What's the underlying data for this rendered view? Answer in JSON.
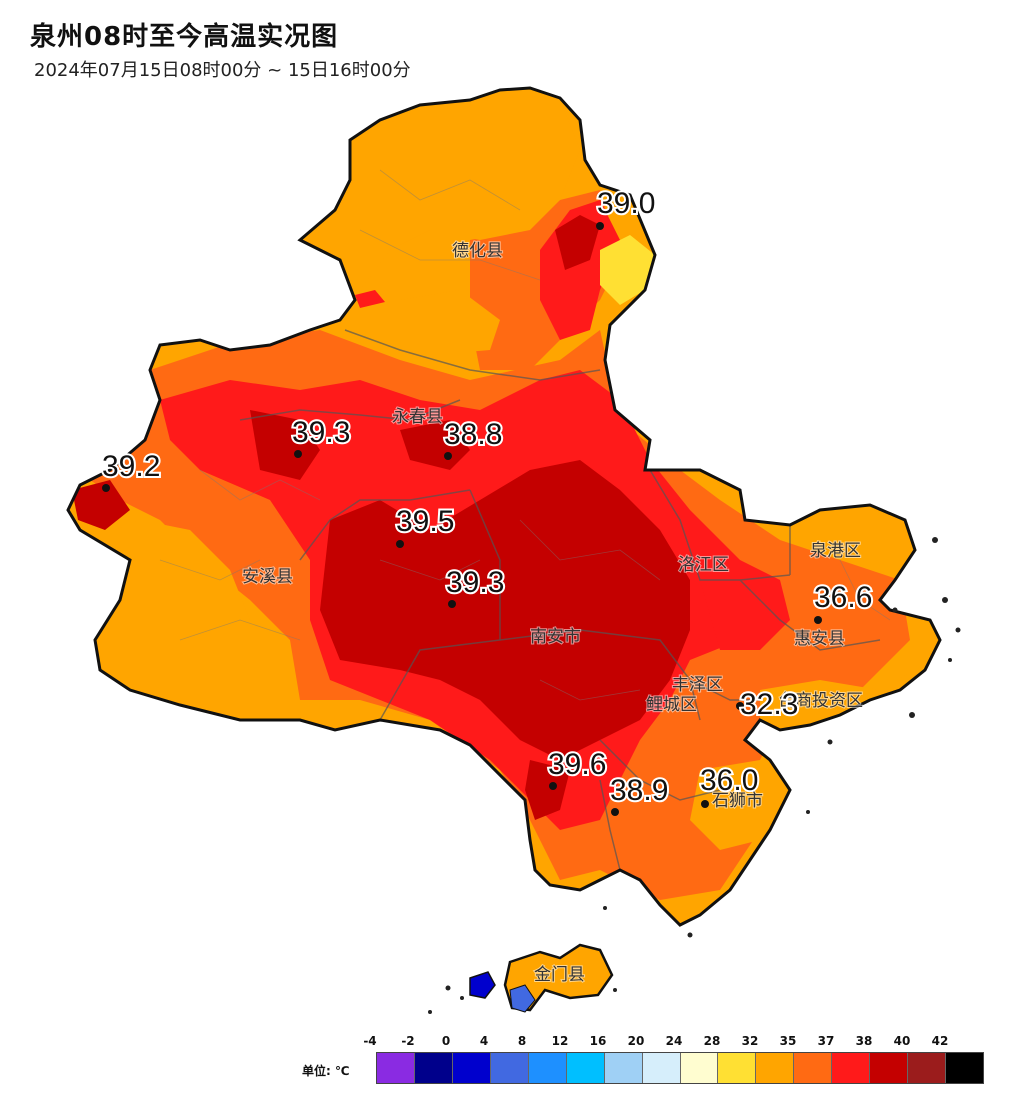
{
  "title": "泉州08时至今高温实况图",
  "subtitle": "2024年07月15日08时00分 ~ 15日16时00分",
  "stations": [
    {
      "name": "station-dehua-north",
      "value": "39.0"
    },
    {
      "name": "station-yongchun-west",
      "value": "39.3"
    },
    {
      "name": "station-yongchun",
      "value": "38.8"
    },
    {
      "name": "station-anxi-west",
      "value": "39.2"
    },
    {
      "name": "station-nanan-north",
      "value": "39.5"
    },
    {
      "name": "station-nanan-central",
      "value": "39.3"
    },
    {
      "name": "station-huian",
      "value": "36.6"
    },
    {
      "name": "station-taishang",
      "value": "32.3"
    },
    {
      "name": "station-nanan-south",
      "value": "39.6"
    },
    {
      "name": "station-jinjiang",
      "value": "38.9"
    },
    {
      "name": "station-shishi",
      "value": "36.0"
    }
  ],
  "counties": [
    {
      "name": "county-dehua",
      "label": "德化县"
    },
    {
      "name": "county-yongchun",
      "label": "永春县"
    },
    {
      "name": "county-anxi",
      "label": "安溪县"
    },
    {
      "name": "county-nanan",
      "label": "南安市"
    },
    {
      "name": "county-luojiang",
      "label": "洛江区"
    },
    {
      "name": "county-quangang",
      "label": "泉港区"
    },
    {
      "name": "county-huian",
      "label": "惠安县"
    },
    {
      "name": "county-fengze",
      "label": "丰泽区"
    },
    {
      "name": "county-licheng",
      "label": "鲤城区"
    },
    {
      "name": "county-taishang",
      "label": "台商投资区"
    },
    {
      "name": "county-shishi",
      "label": "石狮市"
    },
    {
      "name": "county-jinmen",
      "label": "金门县"
    }
  ],
  "legend": {
    "unit_label": "单位: ℃",
    "ticks": [
      "-4",
      "-2",
      "0",
      "4",
      "8",
      "12",
      "16",
      "20",
      "24",
      "28",
      "32",
      "35",
      "37",
      "38",
      "40",
      "42"
    ],
    "colors": [
      "#8a2be2",
      "#00008b",
      "#0000cd",
      "#4169e1",
      "#1e90ff",
      "#00bfff",
      "#9fd0f5",
      "#d6eefb",
      "#fffdd0",
      "#ffe033",
      "#ffa500",
      "#ff6a13",
      "#ff1a1a",
      "#c40000",
      "#9b1c1c",
      "#000000"
    ]
  }
}
